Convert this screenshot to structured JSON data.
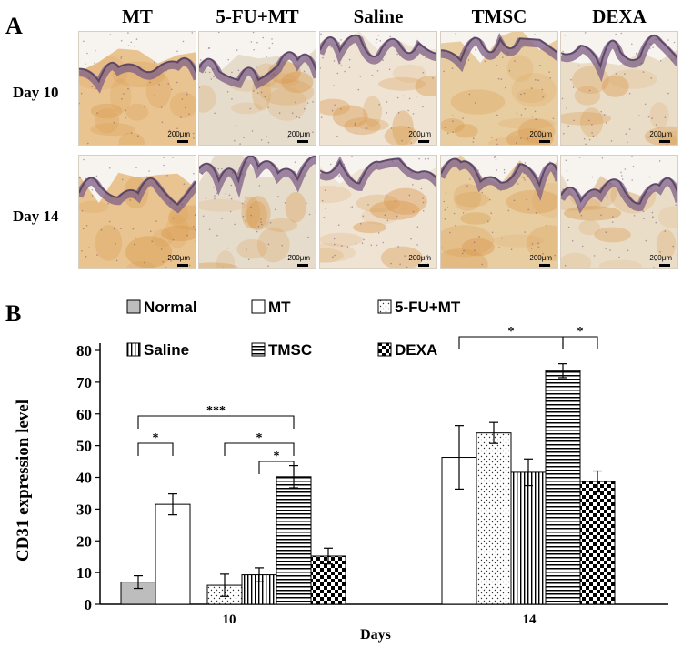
{
  "panel_a": {
    "letter": "A",
    "columns": [
      "MT",
      "5-FU+MT",
      "Saline",
      "TMSC",
      "DEXA"
    ],
    "rows": [
      "Day 10",
      "Day 14"
    ],
    "scale_label": "200μm"
  },
  "panel_b": {
    "letter": "B"
  },
  "chart_data": {
    "type": "bar",
    "xlabel": "Days",
    "ylabel": "CD31 expression level",
    "ylim": [
      0,
      80
    ],
    "yticks": [
      0,
      10,
      20,
      30,
      40,
      50,
      60,
      70,
      80
    ],
    "categories": [
      "10",
      "14"
    ],
    "legend_position": "top",
    "series": [
      {
        "name": "Normal",
        "pattern": "solid-gray",
        "color": "#bdbdbd",
        "values": [
          7,
          null
        ],
        "errors": [
          2,
          null
        ]
      },
      {
        "name": "MT",
        "pattern": "white",
        "color": "#ffffff",
        "values": [
          31.5,
          46.3
        ],
        "errors": [
          3.3,
          10
        ]
      },
      {
        "name": "5-FU+MT",
        "pattern": "dots",
        "color": "#ffffff",
        "values": [
          6,
          54
        ],
        "errors": [
          3.5,
          3.3
        ]
      },
      {
        "name": "Saline",
        "pattern": "vertical-lines",
        "color": "#ffffff",
        "values": [
          9.3,
          41.6
        ],
        "errors": [
          2.2,
          4.2
        ]
      },
      {
        "name": "TMSC",
        "pattern": "horizontal-lines",
        "color": "#ffffff",
        "values": [
          40.2,
          73.6
        ],
        "errors": [
          3.5,
          2.2
        ]
      },
      {
        "name": "DEXA",
        "pattern": "checker",
        "color": "#000000",
        "values": [
          15.2,
          38.7
        ],
        "errors": [
          2.5,
          3.3
        ]
      }
    ],
    "significance": [
      {
        "label": "*"
      },
      {
        "label": "***"
      },
      {
        "label": "*"
      },
      {
        "label": "*"
      },
      {
        "label": "*"
      },
      {
        "label": "*"
      }
    ]
  }
}
